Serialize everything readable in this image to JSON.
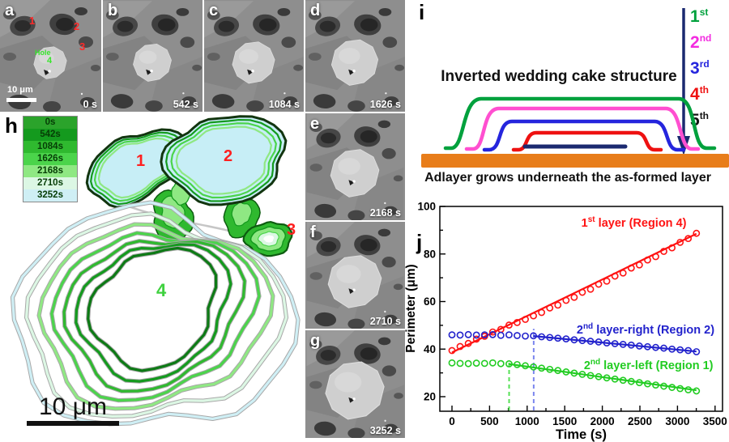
{
  "figure": {
    "background": "#ffffff"
  },
  "panels": {
    "a": {
      "letter": "a",
      "timestamp": "0 s",
      "scale_label": "10 μm",
      "region_labels": [
        "1",
        "2",
        "3"
      ],
      "hole_label": "Hole",
      "region4_label": "4"
    },
    "b": {
      "letter": "b",
      "timestamp": "542 s"
    },
    "c": {
      "letter": "c",
      "timestamp": "1084 s"
    },
    "d": {
      "letter": "d",
      "timestamp": "1626 s"
    },
    "e": {
      "letter": "e",
      "timestamp": "2168 s"
    },
    "f": {
      "letter": "f",
      "timestamp": "2710 s"
    },
    "g": {
      "letter": "g",
      "timestamp": "3252 s"
    }
  },
  "panel_h": {
    "letter": "h",
    "legend": [
      {
        "label": "0s",
        "color": "#2ba32b"
      },
      {
        "label": "542s",
        "color": "#149a1e"
      },
      {
        "label": "1084s",
        "color": "#2fb92f"
      },
      {
        "label": "1626s",
        "color": "#4bd44b"
      },
      {
        "label": "2168s",
        "color": "#8fe883"
      },
      {
        "label": "2710s",
        "color": "#dcf7e4"
      },
      {
        "label": "3252s",
        "color": "#cfeff5"
      }
    ],
    "region_labels": {
      "r1": "1",
      "r2": "2",
      "r3": "3",
      "r4": "4"
    },
    "region_label_color": "#ff2020",
    "region4_label_color": "#3fd13f",
    "scale_label": "10 μm"
  },
  "panel_i": {
    "letter": "i",
    "title": "Inverted wedding cake structure",
    "caption": "Adlayer grows underneath the as-formed layer",
    "ordinals": [
      {
        "pre": "1",
        "sup": "st",
        "color": "#00a13d"
      },
      {
        "pre": "2",
        "sup": "nd",
        "color": "#f32be0"
      },
      {
        "pre": "3",
        "sup": "rd",
        "color": "#2525dd"
      },
      {
        "pre": "4",
        "sup": "th",
        "color": "#ee1111"
      },
      {
        "pre": "5",
        "sup": "th",
        "color": "#111111"
      }
    ],
    "layer_colors": {
      "first": "#00a13d",
      "second": "#ff4fd0",
      "third": "#2525dd",
      "fourth": "#ee1111",
      "fifth": "#1b2a70",
      "substrate": "#e87d1a",
      "arrow": "#1b2a70"
    }
  },
  "panel_j": {
    "letter": "j"
  },
  "chart_data": {
    "type": "scatter",
    "title": "",
    "xlabel": "Time (s)",
    "ylabel": "Perimeter (μm)",
    "xlim": [
      -160,
      3600
    ],
    "ylim": [
      14,
      100
    ],
    "x_ticks": [
      0,
      500,
      1000,
      1500,
      2000,
      2500,
      3000,
      3500
    ],
    "y_ticks": [
      20,
      40,
      60,
      80,
      100
    ],
    "x_minor_step": 250,
    "y_minor_step": 10,
    "grid": false,
    "legend_position": "inline-labels",
    "x": [
      0,
      108,
      217,
      325,
      434,
      542,
      650,
      759,
      867,
      976,
      1084,
      1192,
      1301,
      1409,
      1518,
      1626,
      1734,
      1843,
      1951,
      2059,
      2168,
      2276,
      2385,
      2493,
      2602,
      2710,
      2818,
      2927,
      3035,
      3143,
      3252
    ],
    "series": [
      {
        "name": "1st layer (Region 4)",
        "label_parts": {
          "pre": "1",
          "sup": "st",
          "post": " layer (Region 4)"
        },
        "color": "#ff1212",
        "marker": "circle",
        "y": [
          39.4,
          41.1,
          42.4,
          44.2,
          45.4,
          47.2,
          48.3,
          50.1,
          51.2,
          52.5,
          54.0,
          55.4,
          57.3,
          58.5,
          60.5,
          61.8,
          63.9,
          65.2,
          67.3,
          68.6,
          70.7,
          72.0,
          74.1,
          75.4,
          77.5,
          78.9,
          81.1,
          82.6,
          84.9,
          86.5,
          88.7
        ],
        "fit": {
          "x": [
            0,
            3252
          ],
          "y": [
            38.6,
            88.5
          ]
        },
        "label_pos": {
          "x": 2420,
          "y": 91.5
        }
      },
      {
        "name": "2nd layer-right (Region 2)",
        "label_parts": {
          "pre": "2",
          "sup": "nd",
          "post": " layer-right (Region 2)"
        },
        "color": "#2222cc",
        "marker": "circle",
        "y": [
          46.0,
          45.9,
          46.1,
          45.9,
          46.0,
          46.1,
          45.8,
          46.0,
          45.7,
          45.5,
          45.6,
          45.2,
          44.9,
          44.6,
          44.3,
          43.9,
          43.6,
          43.3,
          43.0,
          42.6,
          42.3,
          42.0,
          41.7,
          41.3,
          41.0,
          40.7,
          40.4,
          40.0,
          39.7,
          39.4,
          38.9
        ],
        "fit": {
          "x": [
            1084,
            3252
          ],
          "y": [
            45.5,
            39.0
          ]
        },
        "label_pos": {
          "x": 2575,
          "y": 46.5
        }
      },
      {
        "name": "2nd layer-left (Region 1)",
        "label_parts": {
          "pre": "2",
          "sup": "nd",
          "post": " layer-left (Region 1)"
        },
        "color": "#22cc22",
        "marker": "circle",
        "y": [
          34.2,
          34.0,
          33.9,
          34.1,
          34.0,
          34.2,
          33.9,
          33.8,
          33.5,
          33.0,
          32.5,
          32.0,
          31.5,
          31.0,
          30.4,
          29.9,
          29.4,
          28.9,
          28.4,
          27.9,
          27.4,
          26.9,
          26.4,
          25.9,
          25.4,
          24.9,
          24.4,
          23.9,
          23.4,
          22.9,
          22.4
        ],
        "fit": {
          "x": [
            759,
            3252
          ],
          "y": [
            33.7,
            22.7
          ]
        },
        "label_pos": {
          "x": 2615,
          "y": 31.5
        }
      }
    ],
    "vlines": [
      {
        "x": 760,
        "color": "#55e055",
        "top": 34.5,
        "style": "dashed"
      },
      {
        "x": 1087,
        "color": "#7b86ee",
        "top": 48.5,
        "style": "dashed"
      }
    ]
  }
}
